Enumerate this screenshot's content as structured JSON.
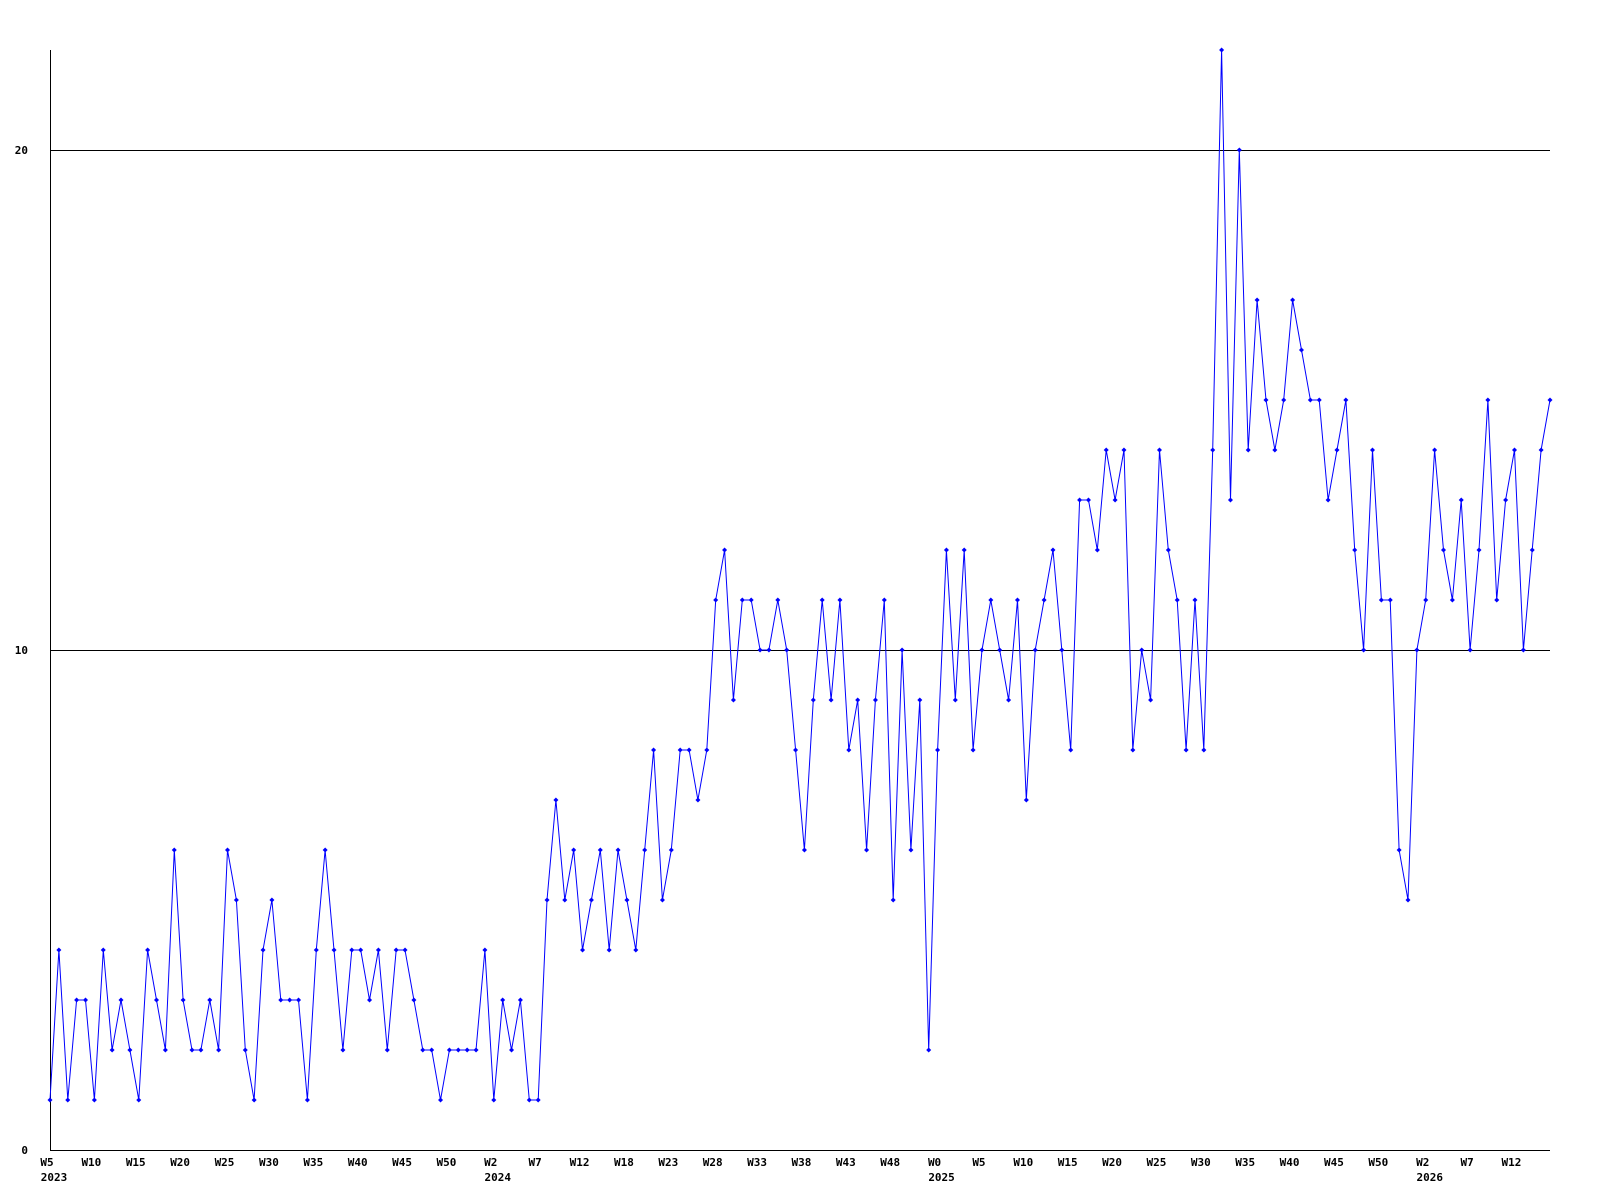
{
  "chart_data": {
    "type": "line",
    "title": "",
    "xlabel": "",
    "ylabel": "",
    "ylim": [
      0,
      22
    ],
    "yticks": [
      0,
      10,
      20
    ],
    "grid": "horizontal lines at 10 and 20",
    "line_color": "#0000ff",
    "axis_color": "#000000",
    "x_tick_labels": [
      {
        "index": 0,
        "label": "W5"
      },
      {
        "index": 5,
        "label": "W10"
      },
      {
        "index": 10,
        "label": "W15"
      },
      {
        "index": 15,
        "label": "W20"
      },
      {
        "index": 20,
        "label": "W25"
      },
      {
        "index": 25,
        "label": "W30"
      },
      {
        "index": 30,
        "label": "W35"
      },
      {
        "index": 35,
        "label": "W40"
      },
      {
        "index": 40,
        "label": "W45"
      },
      {
        "index": 45,
        "label": "W50"
      },
      {
        "index": 50,
        "label": "W2"
      },
      {
        "index": 55,
        "label": "W7"
      },
      {
        "index": 60,
        "label": "W12"
      },
      {
        "index": 65,
        "label": "W18"
      },
      {
        "index": 70,
        "label": "W23"
      },
      {
        "index": 75,
        "label": "W28"
      },
      {
        "index": 80,
        "label": "W33"
      },
      {
        "index": 85,
        "label": "W38"
      },
      {
        "index": 90,
        "label": "W43"
      },
      {
        "index": 95,
        "label": "W48"
      },
      {
        "index": 100,
        "label": "W0"
      },
      {
        "index": 105,
        "label": "W5"
      },
      {
        "index": 110,
        "label": "W10"
      },
      {
        "index": 115,
        "label": "W15"
      },
      {
        "index": 120,
        "label": "W20"
      },
      {
        "index": 125,
        "label": "W25"
      },
      {
        "index": 130,
        "label": "W30"
      },
      {
        "index": 135,
        "label": "W35"
      },
      {
        "index": 140,
        "label": "W40"
      },
      {
        "index": 145,
        "label": "W45"
      },
      {
        "index": 150,
        "label": "W50"
      },
      {
        "index": 155,
        "label": "W2"
      },
      {
        "index": 160,
        "label": "W7"
      },
      {
        "index": 165,
        "label": "W12"
      }
    ],
    "year_labels": [
      {
        "index": 0,
        "label": "2023"
      },
      {
        "index": 50,
        "label": "2024"
      },
      {
        "index": 100,
        "label": "2025"
      },
      {
        "index": 155,
        "label": "2026"
      }
    ],
    "values": [
      1,
      4,
      1,
      3,
      3,
      1,
      4,
      2,
      3,
      2,
      1,
      4,
      3,
      2,
      6,
      3,
      2,
      2,
      3,
      2,
      6,
      5,
      2,
      1,
      4,
      5,
      3,
      3,
      3,
      1,
      4,
      6,
      4,
      2,
      4,
      4,
      3,
      4,
      2,
      4,
      4,
      3,
      2,
      2,
      1,
      2,
      2,
      2,
      2,
      4,
      1,
      3,
      2,
      3,
      1,
      1,
      5,
      7,
      5,
      6,
      4,
      5,
      6,
      4,
      6,
      5,
      4,
      6,
      8,
      5,
      6,
      8,
      8,
      7,
      8,
      11,
      12,
      9,
      11,
      11,
      10,
      10,
      11,
      10,
      8,
      6,
      9,
      11,
      9,
      11,
      8,
      9,
      6,
      9,
      11,
      5,
      10,
      6,
      9,
      2,
      8,
      12,
      9,
      12,
      8,
      10,
      11,
      10,
      9,
      11,
      7,
      10,
      11,
      12,
      10,
      8,
      13,
      13,
      12,
      14,
      13,
      14,
      8,
      10,
      9,
      14,
      12,
      11,
      8,
      11,
      8,
      14,
      22,
      13,
      20,
      14,
      17,
      15,
      14,
      15,
      17,
      16,
      15,
      15,
      13,
      14,
      15,
      12,
      10,
      14,
      11,
      11,
      6,
      5,
      10,
      11,
      14,
      12,
      11,
      13,
      10,
      12,
      15,
      11,
      13,
      14,
      10,
      12,
      14,
      15
    ]
  }
}
